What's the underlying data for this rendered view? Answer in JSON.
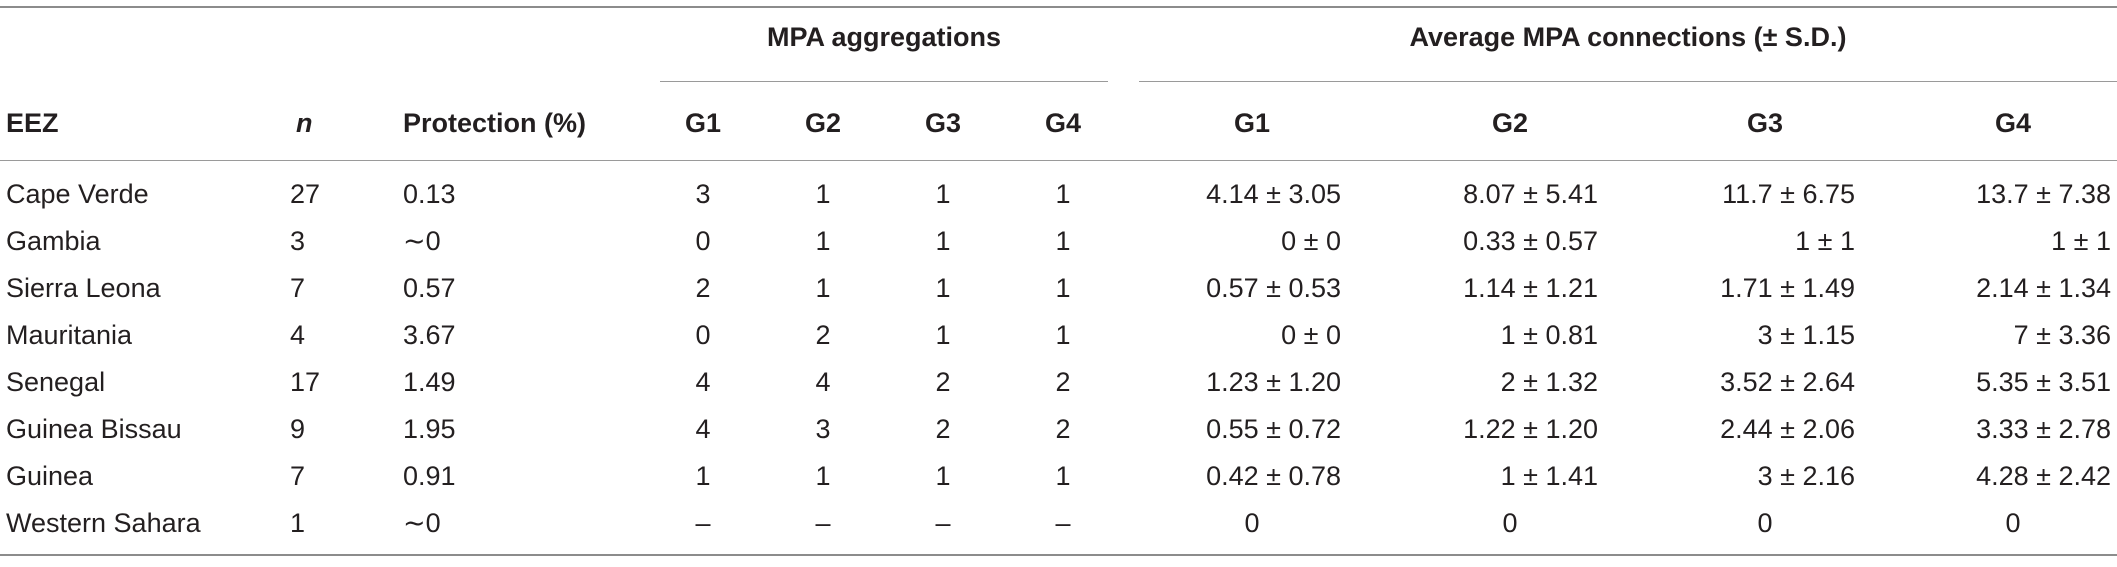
{
  "table": {
    "group_headers": {
      "mpa_aggregations": "MPA aggregations",
      "avg_connections": "Average MPA connections (± S.D.)"
    },
    "columns": {
      "eez": "EEZ",
      "n": "n",
      "protection": "Protection (%)",
      "agg": [
        "G1",
        "G2",
        "G3",
        "G4"
      ],
      "conn": [
        "G1",
        "G2",
        "G3",
        "G4"
      ]
    },
    "rows": [
      {
        "eez": "Cape Verde",
        "n": "27",
        "protection": "0.13",
        "agg": [
          "3",
          "1",
          "1",
          "1"
        ],
        "conn": [
          "4.14 ± 3.05",
          "8.07 ± 5.41",
          "11.7 ± 6.75",
          "13.7 ± 7.38"
        ]
      },
      {
        "eez": "Gambia",
        "n": "3",
        "protection": "∼0",
        "agg": [
          "0",
          "1",
          "1",
          "1"
        ],
        "conn": [
          "0 ± 0",
          "0.33 ± 0.57",
          "1 ± 1",
          "1 ± 1"
        ]
      },
      {
        "eez": "Sierra Leona",
        "n": "7",
        "protection": "0.57",
        "agg": [
          "2",
          "1",
          "1",
          "1"
        ],
        "conn": [
          "0.57 ± 0.53",
          "1.14 ± 1.21",
          "1.71 ± 1.49",
          "2.14 ± 1.34"
        ]
      },
      {
        "eez": "Mauritania",
        "n": "4",
        "protection": "3.67",
        "agg": [
          "0",
          "2",
          "1",
          "1"
        ],
        "conn": [
          "0 ± 0",
          "1 ± 0.81",
          "3 ± 1.15",
          "7 ± 3.36"
        ]
      },
      {
        "eez": "Senegal",
        "n": "17",
        "protection": "1.49",
        "agg": [
          "4",
          "4",
          "2",
          "2"
        ],
        "conn": [
          "1.23 ± 1.20",
          "2 ± 1.32",
          "3.52 ± 2.64",
          "5.35 ± 3.51"
        ]
      },
      {
        "eez": "Guinea Bissau",
        "n": "9",
        "protection": "1.95",
        "agg": [
          "4",
          "3",
          "2",
          "2"
        ],
        "conn": [
          "0.55 ± 0.72",
          "1.22 ± 1.20",
          "2.44 ± 2.06",
          "3.33 ± 2.78"
        ]
      },
      {
        "eez": "Guinea",
        "n": "7",
        "protection": "0.91",
        "agg": [
          "1",
          "1",
          "1",
          "1"
        ],
        "conn": [
          "0.42 ± 0.78",
          "1 ± 1.41",
          "3 ± 2.16",
          "4.28 ± 2.42"
        ]
      },
      {
        "eez": "Western Sahara",
        "n": "1",
        "protection": "∼0",
        "agg": [
          "–",
          "–",
          "–",
          "–"
        ],
        "conn": [
          "0",
          "0",
          "0",
          "0"
        ]
      }
    ]
  }
}
